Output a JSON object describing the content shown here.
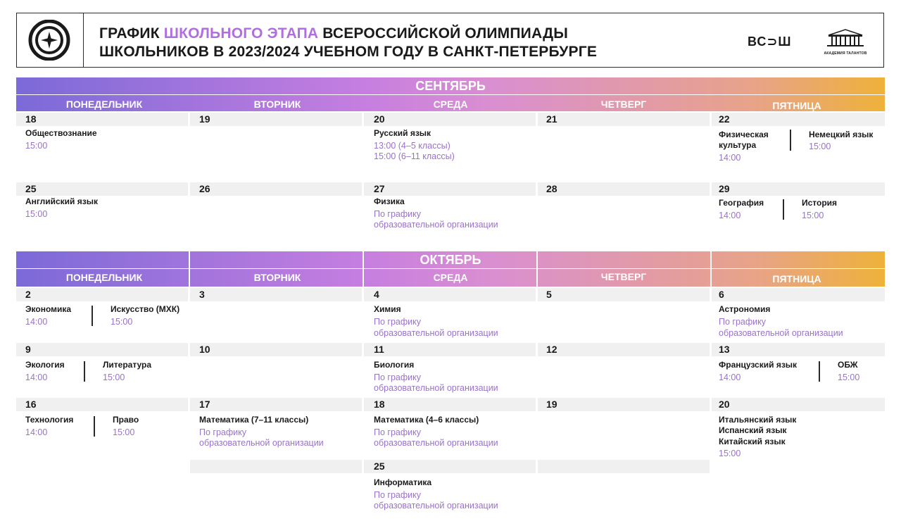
{
  "header": {
    "title_line1_pre": "ГРАФИК ",
    "title_line1_accent": "ШКОЛЬНОГО ЭТАПА",
    "title_line1_post": " ВСЕРОССИЙСКОЙ ОЛИМПИАДЫ",
    "title_line2": "ШКОЛЬНИКОВ В 2023/2024 УЧЕБНОМ ГОДУ В САНКТ-ПЕТЕРБУРГЕ",
    "vos_logo": "ВС⊃Ш",
    "academy_caption": "АКАДЕМИЯ ТАЛАНТОВ",
    "accent_color": "#b06ee0"
  },
  "weekdays": [
    "ПОНЕДЕЛЬНИК",
    "ВТОРНИК",
    "СРЕДА",
    "ЧЕТВЕРГ",
    "ПЯТНИЦА"
  ],
  "september": {
    "label": "СЕНТЯБРЬ",
    "w1": {
      "mon_num": "18",
      "mon_subj": "Обществознание",
      "mon_time": "15:00",
      "tue_num": "19",
      "wed_num": "20",
      "wed_subj": "Русский язык",
      "wed_time1": "13:00 (4–5 классы)",
      "wed_time2": "15:00 (6–11 классы)",
      "thu_num": "21",
      "fri_num": "22",
      "fri_subj_a1": "Физическая",
      "fri_subj_a2": "культура",
      "fri_time_a": "14:00",
      "fri_subj_b": "Немецкий язык",
      "fri_time_b": "15:00"
    },
    "w2": {
      "mon_num": "25",
      "mon_subj": "Английский язык",
      "mon_time": "15:00",
      "tue_num": "26",
      "wed_num": "27",
      "wed_subj": "Физика",
      "wed_time1": "По графику",
      "wed_time2": "образовательной организации",
      "thu_num": "28",
      "fri_num": "29",
      "fri_subj_a": "География",
      "fri_time_a": "14:00",
      "fri_subj_b": "История",
      "fri_time_b": "15:00"
    }
  },
  "october": {
    "label": "ОКТЯБРЬ",
    "w1": {
      "mon_num": "2",
      "mon_subj_a": "Экономика",
      "mon_time_a": "14:00",
      "mon_subj_b": "Искусство (МХК)",
      "mon_time_b": "15:00",
      "tue_num": "3",
      "wed_num": "4",
      "wed_subj": "Химия",
      "wed_time1": "По графику",
      "wed_time2": "образовательной организации",
      "thu_num": "5",
      "fri_num": "6",
      "fri_subj": "Астрономия",
      "fri_time1": "По графику",
      "fri_time2": "образовательной организации"
    },
    "w2": {
      "mon_num": "9",
      "mon_subj_a": "Экология",
      "mon_time_a": "14:00",
      "mon_subj_b": "Литература",
      "mon_time_b": "15:00",
      "tue_num": "10",
      "wed_num": "11",
      "wed_subj": "Биология",
      "wed_time1": "По графику",
      "wed_time2": "образовательной организации",
      "thu_num": "12",
      "fri_num": "13",
      "fri_subj_a": "Французский язык",
      "fri_time_a": "14:00",
      "fri_subj_b": "ОБЖ",
      "fri_time_b": "15:00"
    },
    "w3": {
      "mon_num": "16",
      "mon_subj_a": "Технология",
      "mon_time_a": "14:00",
      "mon_subj_b": "Право",
      "mon_time_b": "15:00",
      "tue_num": "17",
      "tue_subj": "Математика (7–11 классы)",
      "tue_time1": "По графику",
      "tue_time2": "образовательной организации",
      "wed_num": "18",
      "wed_subj": "Математика (4–6 классы)",
      "wed_time1": "По графику",
      "wed_time2": "образовательной организации",
      "thu_num": "19",
      "fri_num": "20",
      "fri_subj1": "Итальянский язык",
      "fri_subj2": "Испанский язык",
      "fri_subj3": "Китайский язык",
      "fri_time": "15:00"
    },
    "w4": {
      "wed_num": "25",
      "wed_subj": "Информатика",
      "wed_time1": "По графику",
      "wed_time2": "образовательной организации"
    }
  }
}
